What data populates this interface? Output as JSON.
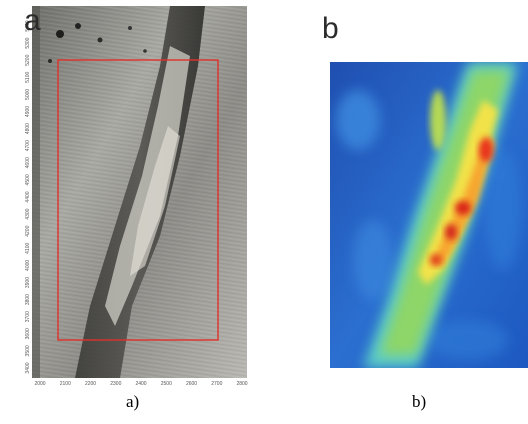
{
  "figure": {
    "panel_a": {
      "letter": "a",
      "caption": "a)",
      "x_ticks": [
        "2000",
        "2100",
        "2200",
        "2300",
        "2400",
        "2500",
        "2600",
        "2700",
        "2800"
      ],
      "y_ticks": [
        "3400",
        "3500",
        "3600",
        "3700",
        "3800",
        "3900",
        "4000",
        "4100",
        "4200",
        "4300",
        "4400",
        "4500",
        "4600",
        "4700",
        "4800",
        "4900",
        "5000",
        "5100",
        "5200",
        "5300",
        "5400"
      ],
      "box_color": "#e0312a"
    },
    "panel_b": {
      "letter": "b",
      "caption": "b)"
    }
  }
}
